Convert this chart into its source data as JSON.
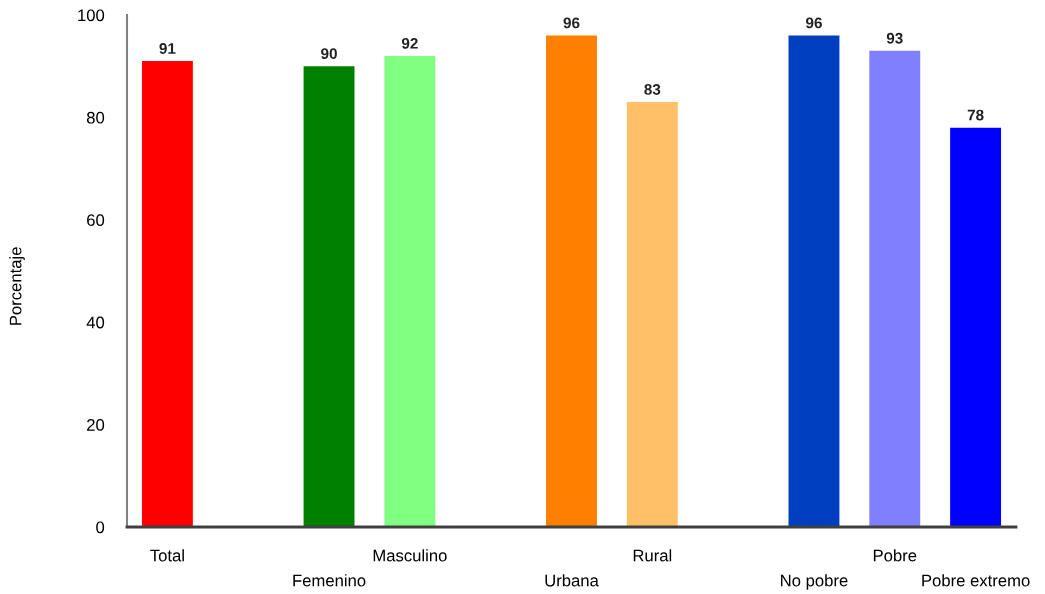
{
  "chart_data": {
    "type": "bar",
    "ylabel": "Porcentaje",
    "categories": [
      "Total",
      null,
      "Femenino",
      "Masculino",
      null,
      "Urbana",
      "Rural",
      null,
      "No pobre",
      "Pobre",
      "Pobre extremo"
    ],
    "values": [
      91,
      null,
      90,
      92,
      null,
      96,
      83,
      null,
      96,
      93,
      78
    ],
    "colors": [
      "#ff0000",
      null,
      "#008000",
      "#80ff80",
      null,
      "#ff8000",
      "#ffc068",
      null,
      "#0040c0",
      "#8080ff",
      "#0000ff"
    ],
    "ylim": [
      0,
      100
    ],
    "yticks": [
      0,
      20,
      40,
      60,
      80,
      100
    ],
    "data_labels": true
  }
}
